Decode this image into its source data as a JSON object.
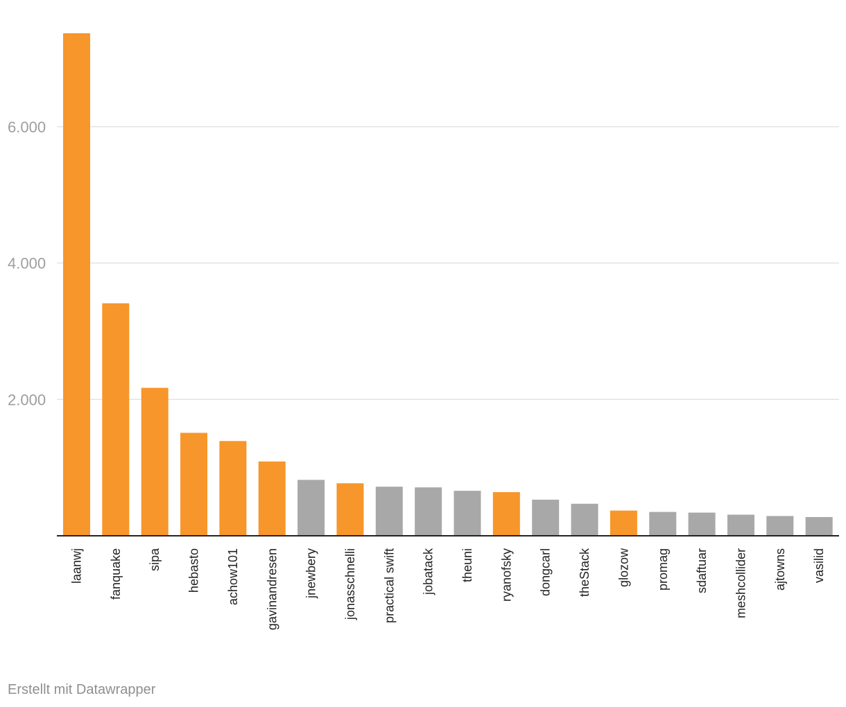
{
  "chart_data": {
    "type": "bar",
    "title": "",
    "xlabel": "",
    "ylabel": "",
    "categories": [
      "laanwj",
      "fanquake",
      "sipa",
      "hebasto",
      "achow101",
      "gavinandresen",
      "jnewbery",
      "jonasschnelli",
      "practical swift",
      "jobatack",
      "theuni",
      "ryanofsky",
      "dongcarl",
      "theStack",
      "glozow",
      "promag",
      "sdaftuar",
      "meshcollider",
      "ajtowns",
      "vasilid"
    ],
    "values": [
      7370,
      3410,
      2170,
      1510,
      1390,
      1090,
      820,
      770,
      720,
      710,
      660,
      640,
      530,
      470,
      370,
      350,
      340,
      310,
      290,
      275
    ],
    "highlighted": [
      true,
      true,
      true,
      true,
      true,
      true,
      false,
      true,
      false,
      false,
      false,
      true,
      false,
      false,
      true,
      false,
      false,
      false,
      false,
      false
    ],
    "colors": {
      "highlight": "#f7962a",
      "default": "#a8a8a8",
      "grid": "#e3e3e3",
      "axis": "#222222"
    },
    "ylim": [
      0,
      7370
    ],
    "yticks": [
      2000,
      4000,
      6000
    ],
    "ytick_labels": [
      "2.000",
      "4.000",
      "6.000"
    ],
    "grid": true,
    "legend": "none"
  },
  "footer": {
    "credit": "Erstellt mit Datawrapper"
  }
}
